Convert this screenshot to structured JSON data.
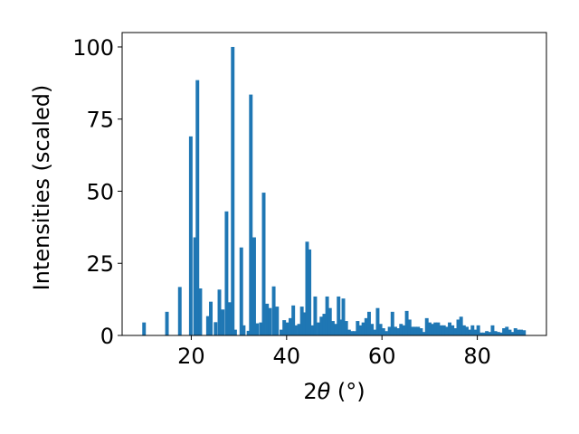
{
  "chart_data": {
    "type": "bar",
    "xlabel_base": "2",
    "xlabel_symbol": "θ",
    "xlabel_unit": " (°)",
    "ylabel": "Intensities (scaled)",
    "xlim": [
      5.5,
      94.5
    ],
    "ylim": [
      0,
      105
    ],
    "xticks": [
      20,
      40,
      60,
      80
    ],
    "yticks": [
      0,
      25,
      50,
      75,
      100
    ],
    "bar_width_deg": 0.75,
    "bar_color": "#1f77b4",
    "grid": false,
    "points": [
      [
        10.1,
        4.5
      ],
      [
        14.9,
        8.2
      ],
      [
        17.6,
        16.8
      ],
      [
        19.9,
        69.0
      ],
      [
        20.8,
        34.0
      ],
      [
        21.3,
        88.5
      ],
      [
        21.9,
        16.3
      ],
      [
        23.5,
        6.7
      ],
      [
        24.1,
        11.7
      ],
      [
        25.1,
        4.6
      ],
      [
        25.9,
        15.9
      ],
      [
        26.6,
        9.0
      ],
      [
        27.4,
        43.0
      ],
      [
        28.0,
        11.5
      ],
      [
        28.7,
        100.0
      ],
      [
        29.2,
        2.0
      ],
      [
        30.5,
        30.5
      ],
      [
        31.0,
        3.5
      ],
      [
        32.0,
        1.6
      ],
      [
        32.5,
        83.5
      ],
      [
        33.2,
        34.0
      ],
      [
        33.8,
        4.2
      ],
      [
        34.6,
        4.5
      ],
      [
        35.2,
        49.5
      ],
      [
        35.9,
        11.0
      ],
      [
        36.5,
        9.5
      ],
      [
        37.3,
        17.0
      ],
      [
        38.0,
        10.0
      ],
      [
        38.9,
        2.0
      ],
      [
        39.5,
        5.3
      ],
      [
        40.1,
        4.5
      ],
      [
        40.8,
        6.0
      ],
      [
        41.4,
        10.4
      ],
      [
        41.9,
        3.5
      ],
      [
        42.6,
        4.0
      ],
      [
        43.2,
        10.0
      ],
      [
        43.7,
        8.0
      ],
      [
        44.3,
        32.5
      ],
      [
        44.8,
        29.8
      ],
      [
        45.4,
        3.5
      ],
      [
        46.0,
        13.5
      ],
      [
        46.7,
        4.5
      ],
      [
        47.3,
        6.5
      ],
      [
        47.9,
        7.5
      ],
      [
        48.5,
        13.5
      ],
      [
        49.1,
        9.5
      ],
      [
        49.7,
        5.0
      ],
      [
        50.3,
        4.0
      ],
      [
        50.9,
        13.5
      ],
      [
        51.4,
        5.5
      ],
      [
        51.9,
        12.8
      ],
      [
        52.5,
        5.0
      ],
      [
        53.1,
        2.0
      ],
      [
        53.7,
        1.5
      ],
      [
        54.3,
        1.5
      ],
      [
        54.9,
        5.0
      ],
      [
        55.5,
        3.5
      ],
      [
        56.1,
        4.5
      ],
      [
        56.7,
        6.0
      ],
      [
        57.3,
        8.2
      ],
      [
        57.9,
        4.0
      ],
      [
        58.5,
        2.0
      ],
      [
        59.1,
        9.5
      ],
      [
        59.7,
        4.0
      ],
      [
        60.3,
        2.5
      ],
      [
        60.9,
        1.5
      ],
      [
        61.6,
        3.0
      ],
      [
        62.2,
        8.2
      ],
      [
        62.8,
        3.0
      ],
      [
        63.4,
        2.5
      ],
      [
        64.0,
        4.0
      ],
      [
        64.6,
        3.5
      ],
      [
        65.2,
        8.5
      ],
      [
        65.8,
        5.5
      ],
      [
        66.4,
        3.0
      ],
      [
        67.0,
        3.0
      ],
      [
        67.6,
        3.0
      ],
      [
        68.2,
        2.5
      ],
      [
        68.8,
        1.2
      ],
      [
        69.4,
        6.0
      ],
      [
        70.0,
        4.5
      ],
      [
        70.6,
        4.0
      ],
      [
        71.2,
        4.5
      ],
      [
        71.8,
        4.5
      ],
      [
        72.4,
        3.5
      ],
      [
        73.0,
        3.5
      ],
      [
        73.6,
        3.0
      ],
      [
        74.2,
        4.5
      ],
      [
        74.8,
        3.5
      ],
      [
        75.4,
        2.5
      ],
      [
        76.0,
        5.5
      ],
      [
        76.6,
        6.5
      ],
      [
        77.2,
        3.5
      ],
      [
        77.8,
        3.0
      ],
      [
        78.4,
        2.0
      ],
      [
        79.0,
        3.5
      ],
      [
        79.6,
        2.0
      ],
      [
        80.2,
        3.5
      ],
      [
        80.8,
        1.0
      ],
      [
        81.4,
        1.0
      ],
      [
        82.0,
        1.5
      ],
      [
        82.6,
        1.2
      ],
      [
        83.2,
        3.5
      ],
      [
        83.8,
        1.5
      ],
      [
        84.4,
        1.2
      ],
      [
        85.0,
        1.0
      ],
      [
        85.6,
        2.5
      ],
      [
        86.2,
        3.0
      ],
      [
        86.8,
        2.0
      ],
      [
        87.4,
        1.2
      ],
      [
        88.0,
        2.5
      ],
      [
        88.6,
        2.0
      ],
      [
        89.2,
        2.0
      ],
      [
        89.8,
        1.8
      ]
    ]
  }
}
